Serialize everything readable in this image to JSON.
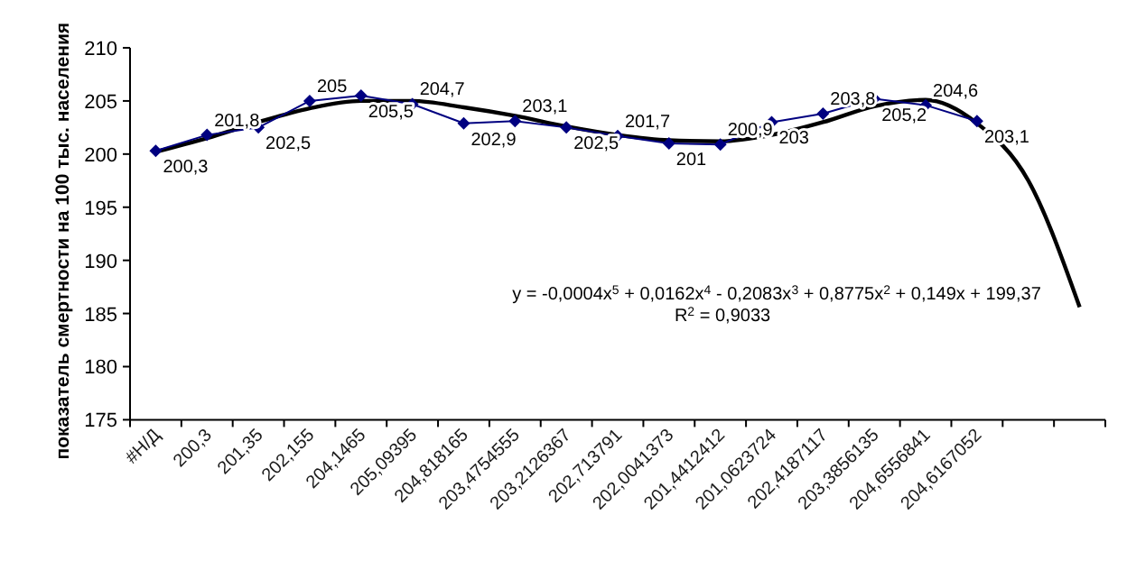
{
  "chart_data": {
    "type": "line",
    "ylabel": "показатель смертности на 100 тыс. населения",
    "categories": [
      "#Н/Д",
      "200,3",
      "201,35",
      "202,155",
      "204,1465",
      "205,09395",
      "204,818165",
      "203,4754555",
      "203,2126367",
      "202,713791",
      "202,0041373",
      "201,4412412",
      "201,0623724",
      "202,4187117",
      "203,3856135",
      "204,6556841",
      "204,6167052",
      null,
      null
    ],
    "series": [
      {
        "color": "#000080",
        "marker": "diamond",
        "values": [
          200.3,
          201.8,
          202.5,
          205,
          205.5,
          204.7,
          202.9,
          203.1,
          202.5,
          201.7,
          201,
          200.9,
          203,
          203.8,
          205.2,
          204.6,
          203.1,
          null,
          null
        ],
        "value_labels": [
          "200,3",
          "201,8",
          "202,5",
          "205",
          "205,5",
          "204,7",
          "202,9",
          "203,1",
          "202,5",
          "201,7",
          "201",
          "200,9",
          "203",
          "203,8",
          "205,2",
          "204,6",
          "203,1",
          null,
          null
        ]
      },
      {
        "color": "#000000",
        "marker": "none",
        "values": [
          200.2,
          201.5,
          203.0,
          204.3,
          205.0,
          205.0,
          204.4,
          203.6,
          202.6,
          201.8,
          201.3,
          201.2,
          201.8,
          203.0,
          204.5,
          205.1,
          202.9,
          197.5,
          185.6
        ]
      }
    ],
    "ylim": [
      175,
      210
    ],
    "yticks": [
      175,
      180,
      185,
      190,
      195,
      200,
      205,
      210
    ],
    "grid": false,
    "line_style": "solid",
    "annotations": [
      "y = -0,0004x$^{5}$ + 0,0162x$^{4}$ - 0,2083x$^{3}$ + 0,8775x$^{2}$ + 0,149x + 199,37",
      "R$^{2}$ = 0,9033"
    ]
  }
}
